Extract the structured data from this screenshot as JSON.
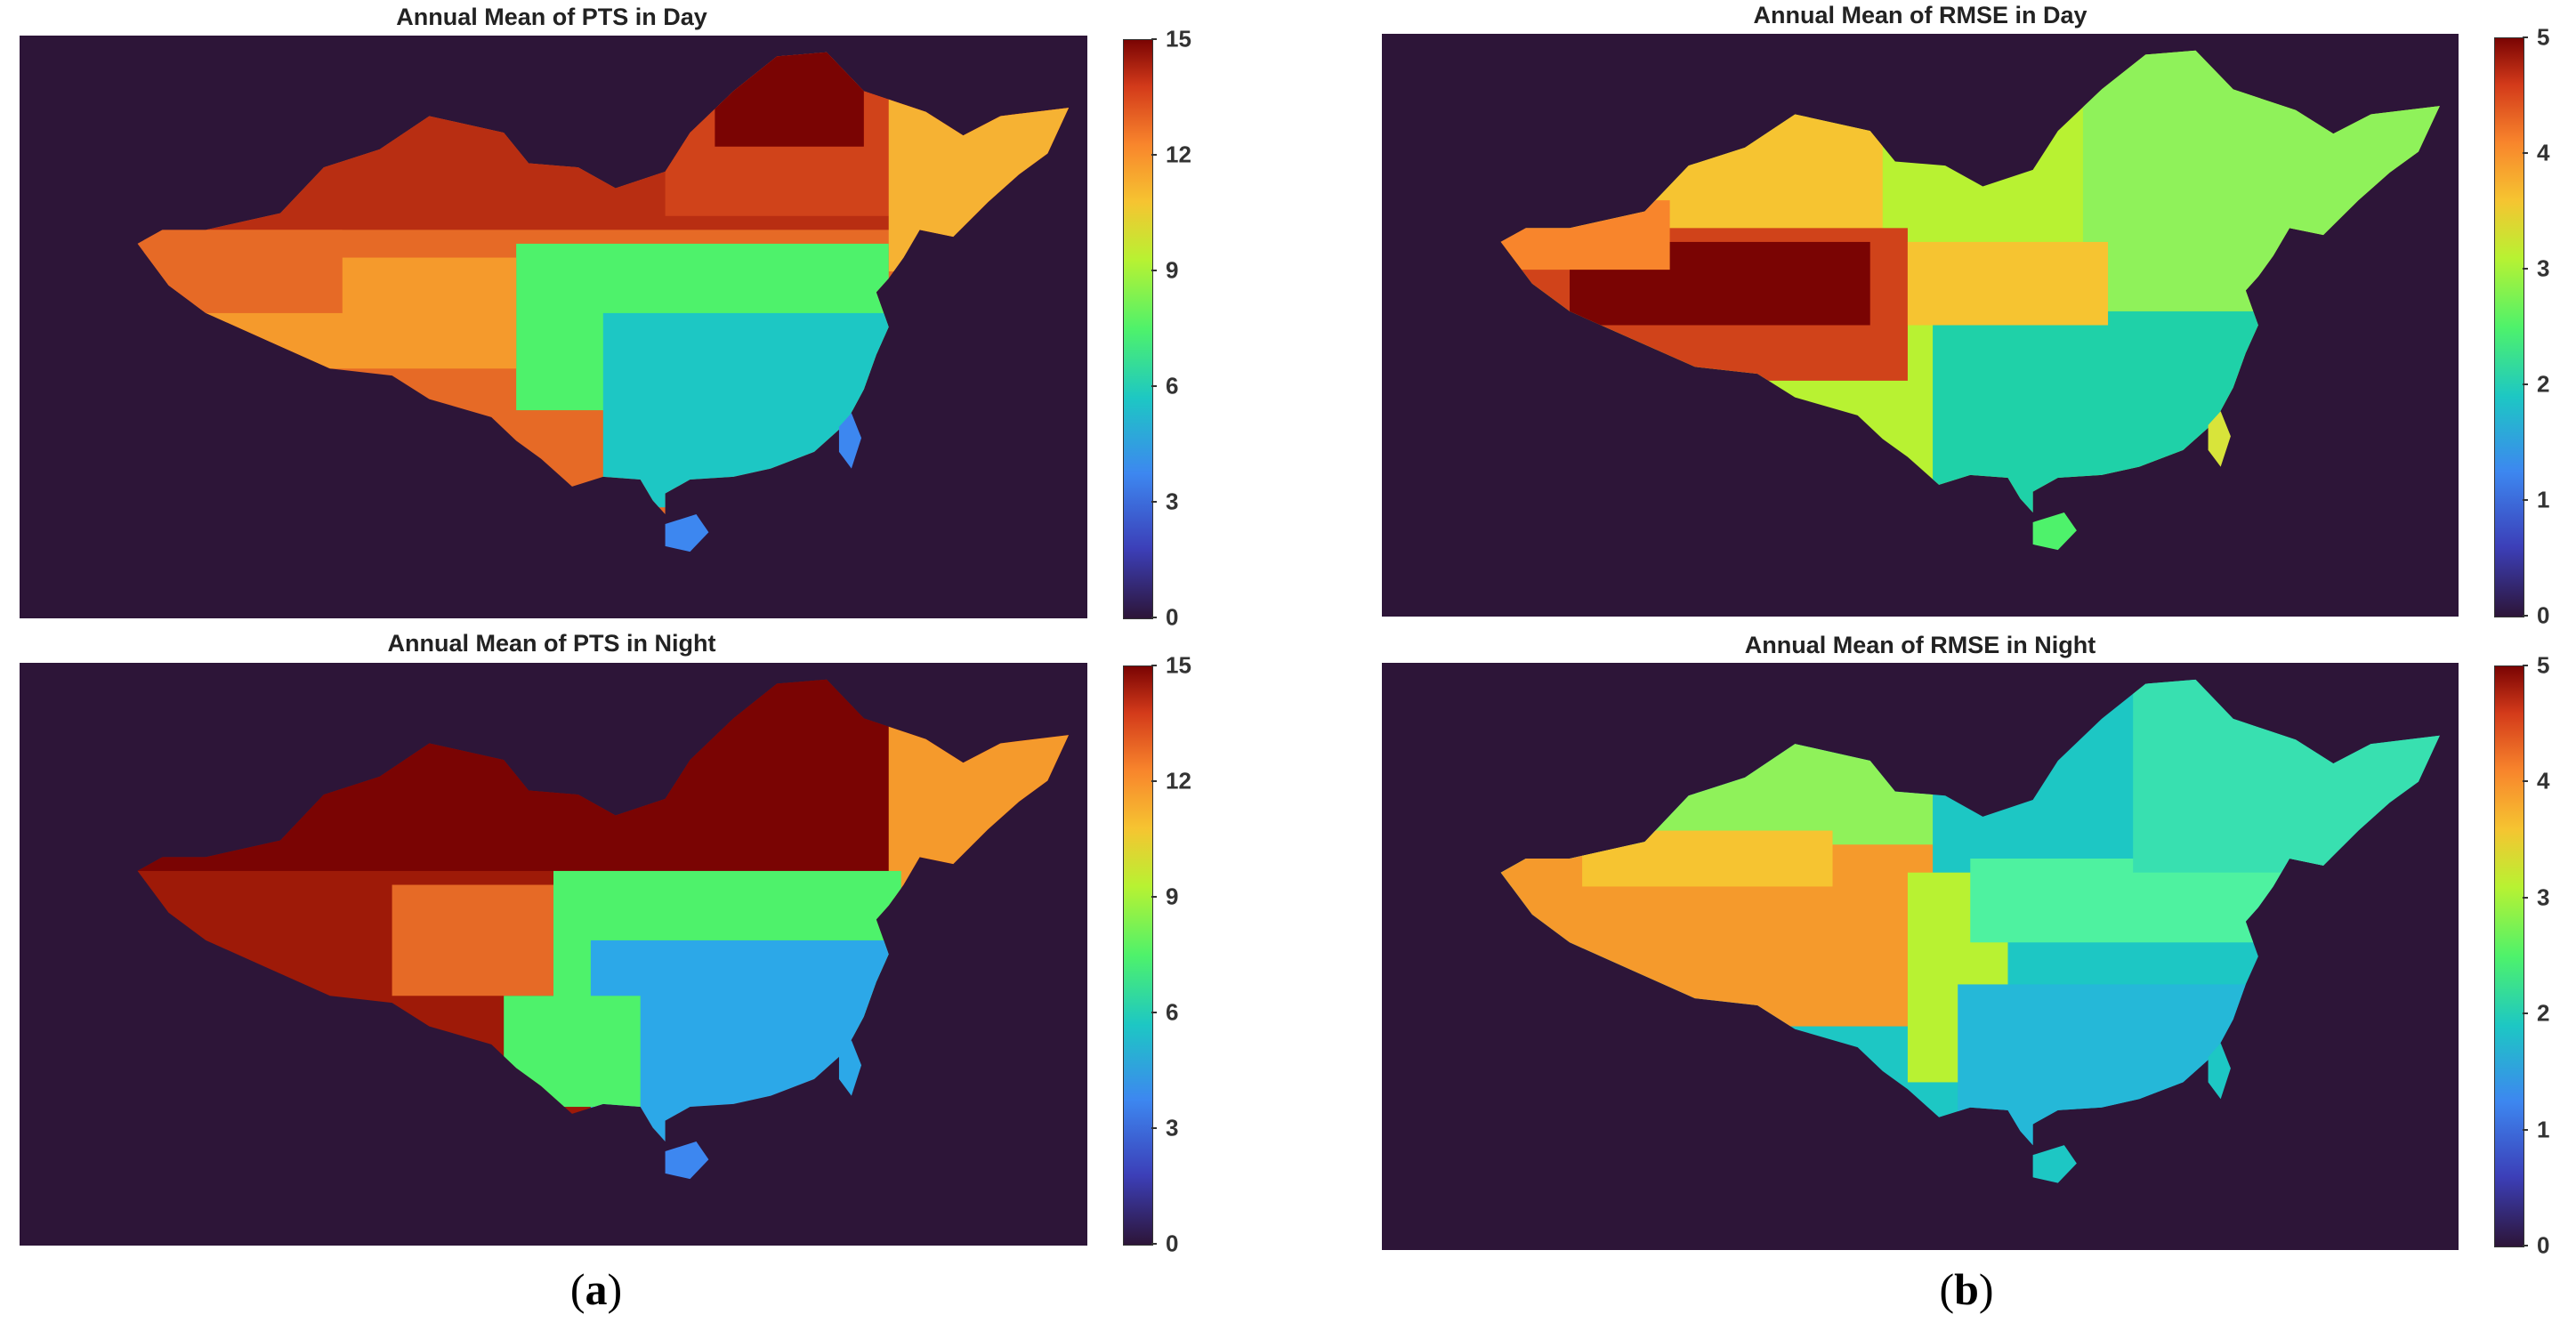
{
  "panels": [
    {
      "title": "Annual Mean of PTS in Day",
      "colorbar": {
        "ticks": [
          "0",
          "3",
          "6",
          "9",
          "12",
          "15"
        ],
        "min": 0,
        "max": 15
      }
    },
    {
      "title": "Annual Mean of RMSE in Day",
      "colorbar": {
        "ticks": [
          "0",
          "1",
          "2",
          "3",
          "4",
          "5"
        ],
        "min": 0,
        "max": 5
      }
    },
    {
      "title": "Annual Mean of PTS in Night",
      "colorbar": {
        "ticks": [
          "0",
          "3",
          "6",
          "9",
          "12",
          "15"
        ],
        "min": 0,
        "max": 15
      }
    },
    {
      "title": "Annual Mean of RMSE in Night",
      "colorbar": {
        "ticks": [
          "0",
          "1",
          "2",
          "3",
          "4",
          "5"
        ],
        "min": 0,
        "max": 5
      }
    }
  ],
  "sublabels": {
    "a": "a",
    "b": "b"
  },
  "colors": {
    "background": "#2d1538"
  }
}
